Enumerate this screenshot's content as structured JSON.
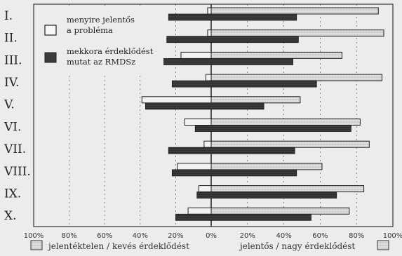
{
  "chart_data": {
    "type": "bar",
    "orientation": "horizontal",
    "categories": [
      "I.",
      "II.",
      "III.",
      "IV.",
      "V.",
      "VI.",
      "VII.",
      "VIII.",
      "IX.",
      "X."
    ],
    "series": [
      {
        "name": "menyire jelentős a probléma",
        "fill": "light",
        "values": [
          {
            "from": -2,
            "to": 92
          },
          {
            "from": -2,
            "to": 95
          },
          {
            "from": -17,
            "to": 72
          },
          {
            "from": -3,
            "to": 94
          },
          {
            "from": -39,
            "to": 49
          },
          {
            "from": -15,
            "to": 82
          },
          {
            "from": -4,
            "to": 87
          },
          {
            "from": -19,
            "to": 61
          },
          {
            "from": -7,
            "to": 84
          },
          {
            "from": -13,
            "to": 76
          }
        ]
      },
      {
        "name": "mekkora érdeklődést mutat az RMDSz",
        "fill": "dark",
        "values": [
          {
            "from": -24,
            "to": 47
          },
          {
            "from": -25,
            "to": 48
          },
          {
            "from": -27,
            "to": 45
          },
          {
            "from": -22,
            "to": 58
          },
          {
            "from": -37,
            "to": 29
          },
          {
            "from": -9,
            "to": 77
          },
          {
            "from": -24,
            "to": 46
          },
          {
            "from": -22,
            "to": 47
          },
          {
            "from": -8,
            "to": 69
          },
          {
            "from": -20,
            "to": 55
          }
        ]
      }
    ],
    "xlim": [
      -100,
      100
    ],
    "x_ticks": [
      "100%",
      "80%",
      "60%",
      "40%",
      "20%",
      "0%",
      "20%",
      "40%",
      "60%",
      "80%",
      "100%"
    ],
    "grid": true,
    "legend": {
      "placement": "top-left",
      "items": [
        {
          "label_line1": "menyire jelentős",
          "label_line2": "a probléma",
          "fill": "light"
        },
        {
          "label_line1": "mekkora érdeklődést",
          "label_line2": "mutat az RMDSz",
          "fill": "dark"
        }
      ]
    },
    "bottom_labels": {
      "left": "jelentéktelen / kevés érdeklődést",
      "right": "jelentős / nagy érdeklődést"
    }
  },
  "colors": {
    "background": "#ececec",
    "light_bar": "#dcdcdc",
    "dark_bar": "#3a3a3a",
    "outline": "#222222"
  }
}
